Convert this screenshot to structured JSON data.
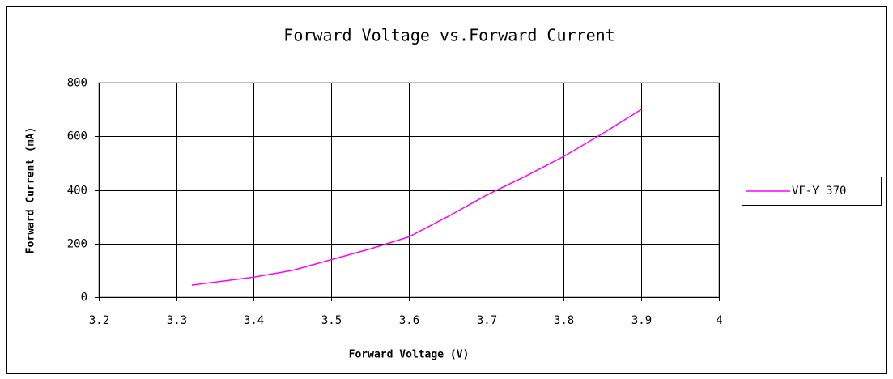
{
  "chart_data": {
    "type": "line",
    "title": "Forward Voltage vs.Forward Current",
    "xlabel": "Forward Voltage (V)",
    "ylabel": "Forward Current (mA)",
    "x": [
      3.32,
      3.4,
      3.45,
      3.5,
      3.55,
      3.6,
      3.65,
      3.7,
      3.75,
      3.8,
      3.85,
      3.9
    ],
    "series": [
      {
        "name": "VF-Y 370",
        "color": "#ff00ff",
        "values": [
          45,
          75,
          100,
          140,
          180,
          225,
          300,
          380,
          450,
          525,
          610,
          700
        ]
      }
    ],
    "xlim": [
      3.2,
      4
    ],
    "xticks": [
      3.2,
      3.3,
      3.4,
      3.5,
      3.6,
      3.7,
      3.8,
      3.9,
      4
    ],
    "ylim": [
      0,
      800
    ],
    "yticks": [
      0,
      200,
      400,
      600,
      800
    ],
    "grid": true,
    "legend": "right"
  }
}
